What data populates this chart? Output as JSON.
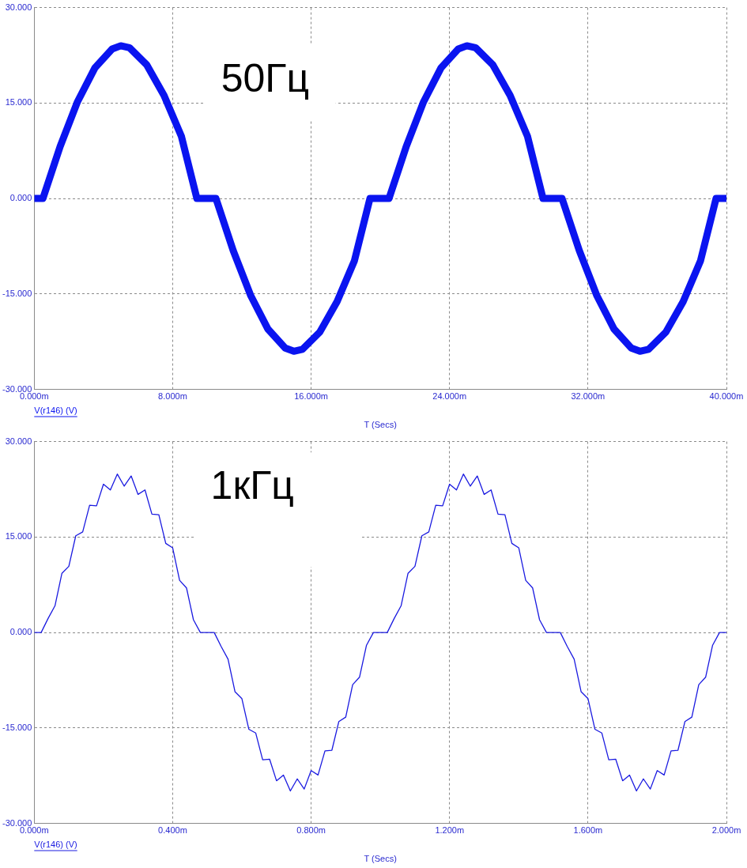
{
  "chart_data": [
    {
      "type": "line",
      "annotations": [
        "50Гц"
      ],
      "xlabel": "T (Secs)",
      "x": [
        0,
        0.5,
        1.5,
        2.5,
        3.5,
        4.5,
        5,
        5.5,
        6.5,
        7.5,
        8.5,
        9.4,
        10.5,
        11.5,
        12.5,
        13.5,
        14.5,
        15,
        15.5,
        16.5,
        17.5,
        18.5,
        19.4,
        20.5,
        21.5,
        22.5,
        23.5,
        24.5,
        25,
        25.5,
        26.5,
        27.5,
        28.5,
        29.4,
        30.5,
        31.5,
        32.5,
        33.5,
        34.5,
        35,
        35.5,
        36.5,
        37.5,
        38.5,
        39.4,
        40
      ],
      "series": [
        {
          "name": "V(r146) (V)",
          "color": "#0a14f0",
          "values": [
            0,
            0,
            8.2,
            15.2,
            20.5,
            23.5,
            24,
            23.7,
            21,
            16.2,
            9.8,
            0,
            0,
            -8.2,
            -15.2,
            -20.5,
            -23.5,
            -24,
            -23.7,
            -21,
            -16.2,
            -9.8,
            0,
            0,
            8.2,
            15.2,
            20.5,
            23.5,
            24,
            23.7,
            21,
            16.2,
            9.8,
            0,
            0,
            -8.2,
            -15.2,
            -20.5,
            -23.5,
            -24,
            -23.7,
            -21,
            -16.2,
            -9.8,
            0,
            0
          ]
        }
      ],
      "xlim": [
        0,
        40
      ],
      "xticks": [
        {
          "value": 0,
          "label": "0.000m"
        },
        {
          "value": 8,
          "label": "8.000m"
        },
        {
          "value": 16,
          "label": "16.000m"
        },
        {
          "value": 24,
          "label": "24.000m"
        },
        {
          "value": 32,
          "label": "32.000m"
        },
        {
          "value": 40,
          "label": "40.000m"
        }
      ],
      "ylim": [
        -30,
        30
      ],
      "yticks": [
        {
          "value": -30,
          "label": "-30.000"
        },
        {
          "value": -15,
          "label": "-15.000"
        },
        {
          "value": 0,
          "label": "0.000"
        },
        {
          "value": 15,
          "label": "15.000"
        },
        {
          "value": 30,
          "label": "30.000"
        }
      ],
      "grid": true,
      "legend": "bottom left",
      "marker": "none",
      "line_style": "solid"
    },
    {
      "type": "line",
      "annotations": [
        "1кГц"
      ],
      "xlabel": "T (Secs)",
      "x": [
        0,
        0.02,
        0.04,
        0.06,
        0.08,
        0.1,
        0.12,
        0.14,
        0.16,
        0.18,
        0.2,
        0.22,
        0.24,
        0.26,
        0.28,
        0.3,
        0.32,
        0.34,
        0.36,
        0.38,
        0.4,
        0.42,
        0.44,
        0.46,
        0.48,
        0.5,
        0.52,
        0.54,
        0.56,
        0.58,
        0.6,
        0.62,
        0.64,
        0.66,
        0.68,
        0.7,
        0.72,
        0.74,
        0.76,
        0.78,
        0.8,
        0.82,
        0.84,
        0.86,
        0.88,
        0.9,
        0.92,
        0.94,
        0.96,
        0.98,
        1,
        1.02,
        1.04,
        1.06,
        1.08,
        1.1,
        1.12,
        1.14,
        1.16,
        1.18,
        1.2,
        1.22,
        1.24,
        1.26,
        1.28,
        1.3,
        1.32,
        1.34,
        1.36,
        1.38,
        1.4,
        1.42,
        1.44,
        1.46,
        1.48,
        1.5,
        1.52,
        1.54,
        1.56,
        1.58,
        1.6,
        1.62,
        1.64,
        1.66,
        1.68,
        1.7,
        1.72,
        1.74,
        1.76,
        1.78,
        1.8,
        1.82,
        1.84,
        1.86,
        1.88,
        1.9,
        1.92,
        1.94,
        1.96,
        1.98,
        2
      ],
      "series": [
        {
          "name": "V(r146) (V)",
          "color": "#1a1ae0",
          "values": [
            0,
            0,
            2.2,
            4.2,
            9.3,
            10.4,
            15.2,
            15.8,
            20.0,
            19.9,
            23.3,
            22.4,
            24.9,
            23.0,
            24.6,
            21.7,
            22.4,
            18.6,
            18.5,
            14.0,
            13.3,
            8.2,
            7.0,
            2.0,
            0,
            0,
            0,
            -2.2,
            -4.2,
            -9.3,
            -10.4,
            -15.2,
            -15.8,
            -20.0,
            -19.9,
            -23.3,
            -22.4,
            -24.9,
            -23.0,
            -24.6,
            -21.7,
            -22.4,
            -18.6,
            -18.5,
            -14.0,
            -13.3,
            -8.2,
            -7.0,
            -2.0,
            0,
            0,
            0,
            2.2,
            4.2,
            9.3,
            10.4,
            15.2,
            15.8,
            20.0,
            19.9,
            23.3,
            22.4,
            24.9,
            23.0,
            24.6,
            21.7,
            22.4,
            18.6,
            18.5,
            14.0,
            13.3,
            8.2,
            7.0,
            2.0,
            0,
            0,
            0,
            -2.2,
            -4.2,
            -9.3,
            -10.4,
            -15.2,
            -15.8,
            -20.0,
            -19.9,
            -23.3,
            -22.4,
            -24.9,
            -23.0,
            -24.6,
            -21.7,
            -22.4,
            -18.6,
            -18.5,
            -14.0,
            -13.3,
            -8.2,
            -7.0,
            -2.0,
            0,
            0
          ]
        }
      ],
      "xlim": [
        0,
        2
      ],
      "xticks": [
        {
          "value": 0,
          "label": "0.000m"
        },
        {
          "value": 0.4,
          "label": "0.400m"
        },
        {
          "value": 0.8,
          "label": "0.800m"
        },
        {
          "value": 1.2,
          "label": "1.200m"
        },
        {
          "value": 1.6,
          "label": "1.600m"
        },
        {
          "value": 2,
          "label": "2.000m"
        }
      ],
      "ylim": [
        -30,
        30
      ],
      "yticks": [
        {
          "value": -30,
          "label": "-30.000"
        },
        {
          "value": -15,
          "label": "-15.000"
        },
        {
          "value": 0,
          "label": "0.000"
        },
        {
          "value": 15,
          "label": "15.000"
        },
        {
          "value": 30,
          "label": "30.000"
        }
      ],
      "grid": true,
      "legend": "bottom left",
      "marker": "none",
      "line_style": "solid"
    }
  ]
}
